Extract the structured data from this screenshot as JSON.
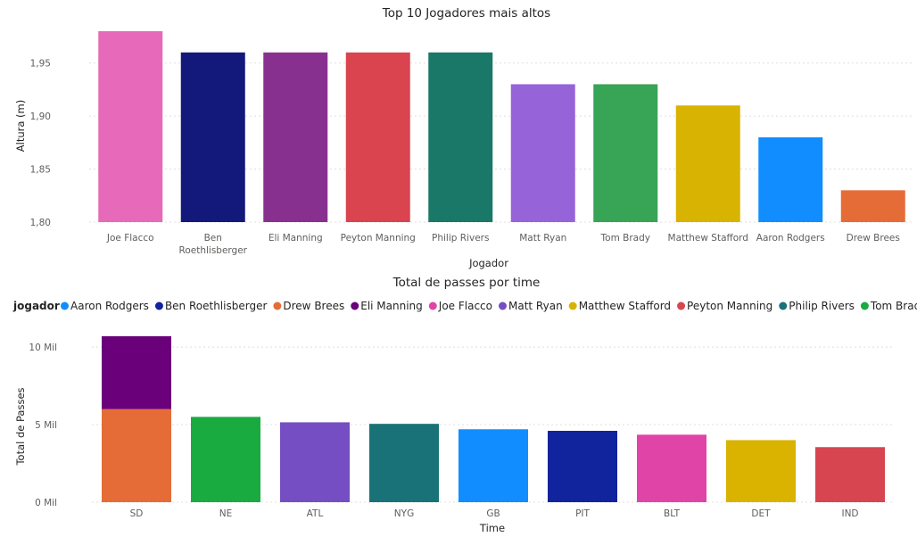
{
  "chart_data": [
    {
      "type": "bar",
      "title": "Top 10 Jogadores mais altos",
      "xlabel": "Jogador",
      "ylabel": "Altura (m)",
      "ylim": [
        1.8,
        1.98
      ],
      "yticks": [
        "1,80",
        "1,85",
        "1,90",
        "1,95"
      ],
      "yticks_values": [
        1.8,
        1.85,
        1.9,
        1.95
      ],
      "grid": true,
      "categories": [
        "Joe Flacco",
        "Ben Roethlisberger",
        "Eli Manning",
        "Peyton Manning",
        "Philip Rivers",
        "Matt Ryan",
        "Tom Brady",
        "Matthew Stafford",
        "Aaron Rodgers",
        "Drew Brees"
      ],
      "category_lines": [
        [
          "Joe Flacco"
        ],
        [
          "Ben",
          "Roethlisberger"
        ],
        [
          "Eli Manning"
        ],
        [
          "Peyton Manning"
        ],
        [
          "Philip Rivers"
        ],
        [
          "Matt Ryan"
        ],
        [
          "Tom Brady"
        ],
        [
          "Matthew Stafford"
        ],
        [
          "Aaron Rodgers"
        ],
        [
          "Drew Brees"
        ]
      ],
      "values": [
        1.98,
        1.96,
        1.96,
        1.96,
        1.96,
        1.93,
        1.93,
        1.91,
        1.88,
        1.83
      ],
      "colors": [
        "#E66AB9",
        "#12197B",
        "#88308F",
        "#D9444F",
        "#197867",
        "#9763D8",
        "#37A456",
        "#D9B301",
        "#118DFF",
        "#E66C37"
      ]
    },
    {
      "type": "bar",
      "stacked": true,
      "title": "Total de passes por time",
      "xlabel": "Time",
      "ylabel": "Total de Passes",
      "ylim": [
        0,
        11500
      ],
      "yticks": [
        "0 Mil",
        "5 Mil",
        "10 Mil"
      ],
      "yticks_values": [
        0,
        5000,
        10000
      ],
      "grid": true,
      "legend_title": "jogador",
      "legend_position": "top-left",
      "legend": [
        {
          "name": "Aaron Rodgers",
          "color": "#118DFF"
        },
        {
          "name": "Ben Roethlisberger",
          "color": "#12239E"
        },
        {
          "name": "Drew Brees",
          "color": "#E66C37"
        },
        {
          "name": "Eli Manning",
          "color": "#6B007B"
        },
        {
          "name": "Joe Flacco",
          "color": "#E044A7"
        },
        {
          "name": "Matt Ryan",
          "color": "#744EC2"
        },
        {
          "name": "Matthew Stafford",
          "color": "#D9B300"
        },
        {
          "name": "Peyton Manning",
          "color": "#D64550"
        },
        {
          "name": "Philip Rivers",
          "color": "#197278"
        },
        {
          "name": "Tom Brady",
          "color": "#1AAB40"
        }
      ],
      "categories": [
        "SD",
        "NE",
        "ATL",
        "NYG",
        "GB",
        "PIT",
        "BLT",
        "DET",
        "IND"
      ],
      "stacks": [
        [
          {
            "player": "Drew Brees",
            "value": 6000
          },
          {
            "player": "Eli Manning",
            "value": 4700
          }
        ],
        [
          {
            "player": "Tom Brady",
            "value": 5500
          }
        ],
        [
          {
            "player": "Matt Ryan",
            "value": 5150
          }
        ],
        [
          {
            "player": "Philip Rivers",
            "value": 5050
          }
        ],
        [
          {
            "player": "Aaron Rodgers",
            "value": 4700
          }
        ],
        [
          {
            "player": "Ben Roethlisberger",
            "value": 4600
          }
        ],
        [
          {
            "player": "Joe Flacco",
            "value": 4350
          }
        ],
        [
          {
            "player": "Matthew Stafford",
            "value": 4000
          }
        ],
        [
          {
            "player": "Peyton Manning",
            "value": 3550
          }
        ]
      ]
    }
  ]
}
